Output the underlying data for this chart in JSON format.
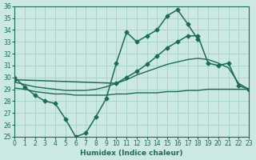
{
  "background_color": "#cce8e2",
  "grid_color": "#a8d4cc",
  "line_color": "#1a6b5a",
  "x_label": "Humidex (Indice chaleur)",
  "ylim": [
    25,
    36
  ],
  "xlim": [
    0,
    23
  ],
  "yticks": [
    25,
    26,
    27,
    28,
    29,
    30,
    31,
    32,
    33,
    34,
    35,
    36
  ],
  "xticks": [
    0,
    1,
    2,
    3,
    4,
    5,
    6,
    7,
    8,
    9,
    10,
    11,
    12,
    13,
    14,
    15,
    16,
    17,
    18,
    19,
    20,
    21,
    22,
    23
  ],
  "series": [
    {
      "x": [
        0,
        1,
        2,
        3,
        4,
        5,
        6,
        7,
        8,
        9,
        10,
        11,
        12,
        13,
        14,
        15,
        16,
        17,
        18
      ],
      "y": [
        30.0,
        29.2,
        28.5,
        28.0,
        27.8,
        26.5,
        25.0,
        25.3,
        26.7,
        28.2,
        31.2,
        33.8,
        33.0,
        33.5,
        34.0,
        35.2,
        35.7,
        34.5,
        33.2
      ],
      "marker": "D",
      "markersize": 2.5,
      "linewidth": 1.1
    },
    {
      "x": [
        0,
        10,
        11,
        12,
        13,
        14,
        15,
        16,
        17,
        18,
        19,
        20,
        21,
        22,
        23
      ],
      "y": [
        29.8,
        29.5,
        30.0,
        30.5,
        31.1,
        31.8,
        32.5,
        33.0,
        33.5,
        33.5,
        31.2,
        31.0,
        31.2,
        29.3,
        29.0
      ],
      "marker": "D",
      "markersize": 2.5,
      "linewidth": 1.1
    },
    {
      "x": [
        0,
        1,
        2,
        3,
        4,
        5,
        6,
        7,
        8,
        9,
        10,
        11,
        12,
        13,
        14,
        15,
        16,
        17,
        18,
        19,
        20,
        21,
        22,
        23
      ],
      "y": [
        29.1,
        29.0,
        28.8,
        28.7,
        28.6,
        28.6,
        28.5,
        28.5,
        28.5,
        28.5,
        28.6,
        28.6,
        28.7,
        28.7,
        28.7,
        28.8,
        28.8,
        28.9,
        28.9,
        29.0,
        29.0,
        29.0,
        29.0,
        29.0
      ],
      "marker": null,
      "linewidth": 1.0
    },
    {
      "x": [
        0,
        1,
        2,
        3,
        4,
        5,
        6,
        7,
        8,
        9,
        10,
        11,
        12,
        13,
        14,
        15,
        16,
        17,
        18,
        19,
        20,
        21,
        22,
        23
      ],
      "y": [
        29.6,
        29.4,
        29.2,
        29.1,
        29.0,
        28.9,
        28.9,
        28.9,
        29.0,
        29.2,
        29.5,
        29.8,
        30.2,
        30.5,
        30.8,
        31.1,
        31.3,
        31.5,
        31.6,
        31.5,
        31.2,
        30.8,
        29.5,
        29.0
      ],
      "marker": null,
      "linewidth": 1.0
    }
  ]
}
